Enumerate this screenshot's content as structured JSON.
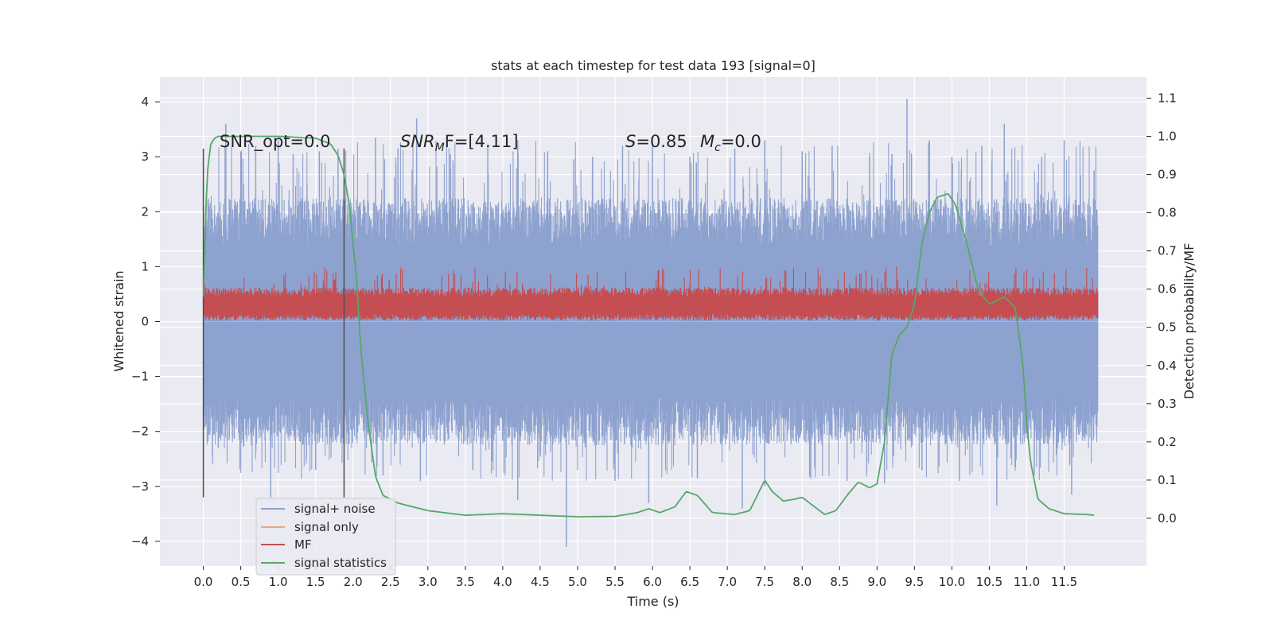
{
  "chart_data": {
    "type": "line",
    "title": "stats at each timestep for test data 193 [signal=0]",
    "xlabel": "Time (s)",
    "ylabel_left": "Whitened strain",
    "ylabel_right": "Detection probability/MF",
    "xlim": [
      -0.58,
      12.6
    ],
    "ylim_left": [
      -4.45,
      4.45
    ],
    "ylim_right": [
      -0.125,
      1.155
    ],
    "x_ticks": [
      "0.0",
      "0.5",
      "1.0",
      "1.5",
      "2.0",
      "2.5",
      "3.0",
      "3.5",
      "4.0",
      "4.5",
      "5.0",
      "5.5",
      "6.0",
      "6.5",
      "7.0",
      "7.5",
      "8.0",
      "8.5",
      "9.0",
      "9.5",
      "10.0",
      "10.5",
      "11.0",
      "11.5"
    ],
    "y_left_ticks": [
      "4",
      "3",
      "2",
      "1",
      "0",
      "−1",
      "−2",
      "−3",
      "−4"
    ],
    "y_left_tick_values": [
      4,
      3,
      2,
      1,
      0,
      -1,
      -2,
      -3,
      -4
    ],
    "y_right_ticks": [
      "1.1",
      "1.0",
      "0.9",
      "0.8",
      "0.7",
      "0.6",
      "0.5",
      "0.4",
      "0.3",
      "0.2",
      "0.1",
      "0.0"
    ],
    "y_right_tick_values": [
      1.1,
      1.0,
      0.9,
      0.8,
      0.7,
      0.6,
      0.5,
      0.4,
      0.3,
      0.2,
      0.1,
      0.0
    ],
    "grid": true,
    "legend_placement": "lower-left",
    "annotations": {
      "snr_opt": "SNR_opt=0.0",
      "snr_mf_prefix": "SNR",
      "snr_mf_sub": "M",
      "snr_mf_suffix": "F=[4.11]",
      "s_label": "S",
      "s_value": "=0.85",
      "mc_label": "M",
      "mc_sub": "c",
      "mc_value": "=0.0"
    },
    "vertical_markers": {
      "x": [
        0.0,
        1.88
      ],
      "y_range": [
        -3.2,
        3.15
      ]
    },
    "series": [
      {
        "name": "signal+ noise",
        "color": "#8ea2cf",
        "axis": "left",
        "t_range": [
          0.0,
          11.95
        ],
        "core_band": [
          -1.35,
          1.35
        ],
        "peaks_x": [
          0.3,
          0.5,
          0.7,
          1.0,
          1.2,
          1.55,
          1.8,
          2.3,
          2.6,
          2.85,
          3.3,
          3.8,
          4.2,
          4.6,
          5.2,
          5.6,
          6.0,
          6.5,
          7.1,
          7.5,
          8.0,
          8.4,
          8.9,
          9.2,
          9.4,
          9.7,
          10.0,
          10.4,
          10.7,
          11.2,
          11.5,
          11.9
        ],
        "peaks_y": [
          3.6,
          3.1,
          3.2,
          3.3,
          3.05,
          3.1,
          3.15,
          3.35,
          3.15,
          3.7,
          3.05,
          3.2,
          3.3,
          3.1,
          3.0,
          3.2,
          3.25,
          3.0,
          3.15,
          3.3,
          3.1,
          3.2,
          3.0,
          3.05,
          4.05,
          3.3,
          3.0,
          3.2,
          3.6,
          3.0,
          3.3,
          2.75
        ],
        "troughs_x": [
          0.2,
          0.9,
          1.5,
          2.4,
          2.9,
          3.6,
          4.2,
          4.85,
          5.5,
          5.95,
          6.6,
          7.2,
          7.5,
          8.1,
          8.6,
          9.1,
          9.6,
          10.1,
          10.6,
          11.1,
          11.6
        ],
        "troughs_y": [
          -2.3,
          -3.2,
          -2.7,
          -2.8,
          -2.9,
          -2.7,
          -3.25,
          -4.1,
          -2.9,
          -3.3,
          -2.85,
          -3.4,
          -3.0,
          -2.8,
          -2.9,
          -2.95,
          -2.7,
          -2.9,
          -3.35,
          -2.8,
          -3.15
        ]
      },
      {
        "name": "signal only",
        "color": "#e8a882",
        "axis": "left",
        "values": "zero"
      },
      {
        "name": "MF",
        "color": "#c44e52",
        "axis": "left",
        "t_range": [
          0.0,
          11.95
        ],
        "band": [
          0.0,
          0.62
        ],
        "spike_max": 1.0
      },
      {
        "name": "signal statistics",
        "color": "#55a868",
        "axis": "right",
        "x": [
          0.0,
          0.05,
          0.1,
          0.15,
          0.2,
          0.3,
          0.5,
          1.0,
          1.5,
          1.7,
          1.8,
          1.88,
          1.95,
          2.05,
          2.1,
          2.2,
          2.3,
          2.4,
          2.6,
          3.0,
          3.5,
          4.0,
          4.5,
          5.0,
          5.5,
          5.8,
          5.95,
          6.1,
          6.3,
          6.45,
          6.6,
          6.8,
          7.1,
          7.3,
          7.5,
          7.6,
          7.75,
          7.9,
          8.0,
          8.1,
          8.3,
          8.45,
          8.6,
          8.75,
          8.9,
          9.0,
          9.1,
          9.2,
          9.3,
          9.4,
          9.5,
          9.6,
          9.7,
          9.8,
          9.95,
          10.05,
          10.2,
          10.35,
          10.5,
          10.7,
          10.85,
          10.95,
          11.0,
          11.05,
          11.15,
          11.3,
          11.5,
          11.8,
          11.9
        ],
        "y": [
          0.58,
          0.9,
          0.98,
          0.995,
          1.0,
          1.0,
          1.0,
          1.0,
          0.995,
          0.98,
          0.95,
          0.9,
          0.82,
          0.62,
          0.45,
          0.25,
          0.11,
          0.06,
          0.04,
          0.02,
          0.008,
          0.012,
          0.008,
          0.004,
          0.005,
          0.015,
          0.025,
          0.015,
          0.03,
          0.07,
          0.06,
          0.015,
          0.01,
          0.02,
          0.1,
          0.07,
          0.045,
          0.05,
          0.055,
          0.04,
          0.01,
          0.02,
          0.06,
          0.095,
          0.08,
          0.09,
          0.2,
          0.43,
          0.48,
          0.5,
          0.56,
          0.72,
          0.8,
          0.84,
          0.85,
          0.82,
          0.72,
          0.6,
          0.56,
          0.58,
          0.55,
          0.4,
          0.25,
          0.15,
          0.05,
          0.025,
          0.012,
          0.01,
          0.008
        ]
      }
    ]
  }
}
